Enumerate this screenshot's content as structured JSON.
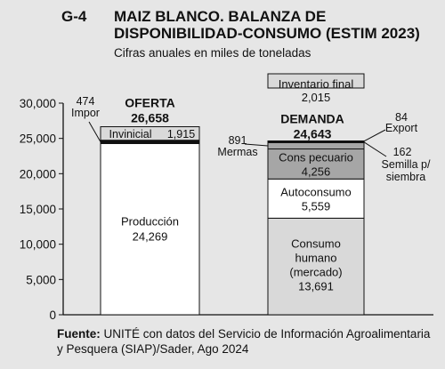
{
  "header": {
    "code": "G-4",
    "title": "MAIZ BLANCO. BALANZA DE DISPONIBILIDAD-CONSUMO (ESTIM 2023)",
    "subtitle": "Cifras anuales en miles de toneladas"
  },
  "source": {
    "label": "Fuente:",
    "text": "UNITÉ con datos del Servicio de Información Agroalimentaria y Pesquera (SIAP)/Sader, Ago 2024"
  },
  "colors": {
    "background": "#e6e6e6",
    "white_segment": "#ffffff",
    "light_segment": "#d9d9d9",
    "dark_segment": "#a6a6a6",
    "thin_band": "#111111"
  },
  "chart_data": {
    "type": "bar",
    "stacked": true,
    "ylim": [
      0,
      30000
    ],
    "yticks": [
      "0",
      "5,000",
      "10,000",
      "15,000",
      "20,000",
      "25,000",
      "30,000"
    ],
    "ytick_values": [
      0,
      5000,
      10000,
      15000,
      20000,
      25000,
      30000
    ],
    "grid": false,
    "bars": [
      {
        "name": "OFERTA",
        "total_label": "26,658",
        "total": 26658,
        "segments": [
          {
            "label": "Producción",
            "value": 24269,
            "value_label": "24,269",
            "fill": "white"
          },
          {
            "label": "Impor",
            "value": 474,
            "value_label": "474",
            "fill": "thin",
            "callout": "left"
          },
          {
            "label": "Invinicial",
            "value": 1915,
            "value_label": "1,915",
            "fill": "light"
          }
        ]
      },
      {
        "name": "DEMANDA",
        "total_label": "24,643",
        "total": 24643,
        "segments": [
          {
            "label": "Consumo humano (mercado)",
            "value": 13691,
            "value_label": "13,691",
            "fill": "light"
          },
          {
            "label": "Autoconsumo",
            "value": 5559,
            "value_label": "5,559",
            "fill": "white"
          },
          {
            "label": "Cons pecuario",
            "value": 4256,
            "value_label": "4,256",
            "fill": "dark"
          },
          {
            "label": "Mermas",
            "value": 891,
            "value_label": "891",
            "fill": "dark",
            "callout": "left"
          },
          {
            "label": "Semilla p/ siembra",
            "value": 162,
            "value_label": "162",
            "fill": "thin",
            "callout": "right"
          },
          {
            "label": "Export",
            "value": 84,
            "value_label": "84",
            "fill": "thin",
            "callout": "right"
          }
        ],
        "extra": {
          "label": "Inventario final",
          "value": 2015,
          "value_label": "2,015"
        }
      }
    ]
  }
}
